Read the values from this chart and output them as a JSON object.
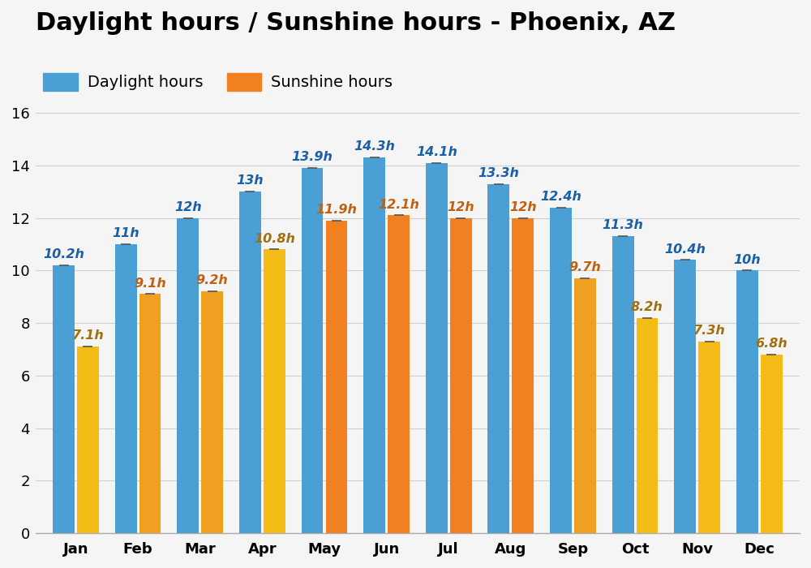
{
  "title": "Daylight hours / Sunshine hours - Phoenix, AZ",
  "months": [
    "Jan",
    "Feb",
    "Mar",
    "Apr",
    "May",
    "Jun",
    "Jul",
    "Aug",
    "Sep",
    "Oct",
    "Nov",
    "Dec"
  ],
  "daylight_hours": [
    10.2,
    11.0,
    12.0,
    13.0,
    13.9,
    14.3,
    14.1,
    13.3,
    12.4,
    11.3,
    10.4,
    10.0
  ],
  "sunshine_hours": [
    7.1,
    9.1,
    9.2,
    10.8,
    11.9,
    12.1,
    12.0,
    12.0,
    9.7,
    8.2,
    7.3,
    6.8
  ],
  "daylight_labels": [
    "10.2h",
    "11h",
    "12h",
    "13h",
    "13.9h",
    "14.3h",
    "14.1h",
    "13.3h",
    "12.4h",
    "11.3h",
    "10.4h",
    "10h"
  ],
  "sunshine_labels": [
    "7.1h",
    "9.1h",
    "9.2h",
    "10.8h",
    "11.9h",
    "12.1h",
    "12h",
    "12h",
    "9.7h",
    "8.2h",
    "7.3h",
    "6.8h"
  ],
  "sunshine_colors": [
    "#f5bc18",
    "#f0a020",
    "#f0a020",
    "#f5bc18",
    "#f08020",
    "#f08020",
    "#f08020",
    "#f08020",
    "#f0a020",
    "#f5bc18",
    "#f5bc18",
    "#f5bc18"
  ],
  "daylight_color": "#4a9fd4",
  "sunshine_color_orange": "#f08020",
  "ylim": [
    0,
    16.8
  ],
  "yticks": [
    0,
    2,
    4,
    6,
    8,
    10,
    12,
    14,
    16
  ],
  "background_color": "#f5f5f5",
  "grid_color": "#d0d0d0",
  "daylight_label_color": "#1a5fa8",
  "sunshine_label_color_orange": "#c06010",
  "sunshine_label_color_yellow": "#a07010",
  "bar_width": 0.35,
  "title_fontsize": 22,
  "legend_fontsize": 14,
  "label_fontsize": 11.5,
  "tick_fontsize": 13,
  "error_bar_cap": 0.08
}
